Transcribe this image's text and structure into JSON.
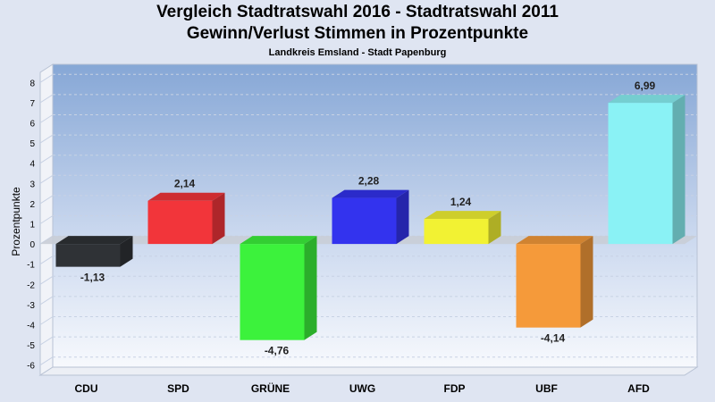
{
  "chart_data": {
    "type": "bar",
    "title": "Vergleich Stadtratswahl 2016 - Stadtratswahl 2011",
    "subtitle": "Gewinn/Verlust Stimmen in Prozentpunkte",
    "subsubtitle": "Landkreis Emsland - Stadt Papenburg",
    "ylabel": "Prozentpunkte",
    "xlabel": "",
    "ylim": [
      -6.5,
      8.5
    ],
    "yticks": [
      "8",
      "7",
      "6",
      "5",
      "4",
      "3",
      "2",
      "1",
      "0",
      "-1",
      "-2",
      "-3",
      "-4",
      "-5",
      "-6"
    ],
    "categories": [
      "CDU",
      "SPD",
      "GRÜNE",
      "UWG",
      "FDP",
      "UBF",
      "AFD"
    ],
    "values": [
      -1.13,
      2.14,
      -4.76,
      2.28,
      1.24,
      -4.14,
      6.99
    ],
    "value_labels": [
      "-1,13",
      "2,14",
      "-4,76",
      "2,28",
      "1,24",
      "-4,14",
      "6,99"
    ],
    "colors": [
      "#2f3236",
      "#f2353a",
      "#3cf23c",
      "#3333ee",
      "#f2f233",
      "#f59a3a",
      "#8af2f5"
    ],
    "grid": true,
    "legend": "none"
  }
}
